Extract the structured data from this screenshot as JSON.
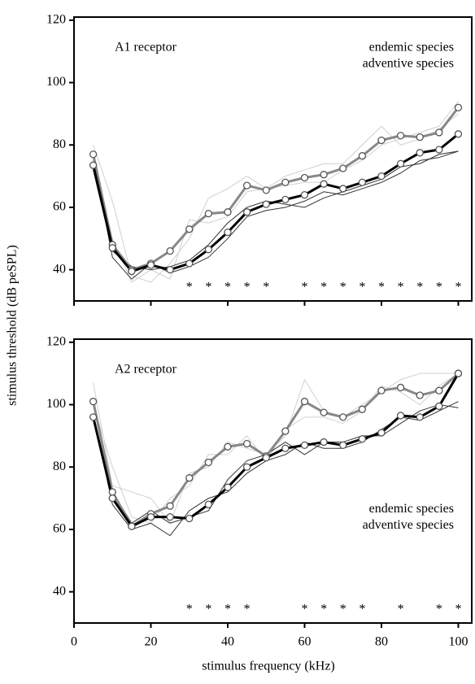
{
  "chart_data": [
    {
      "type": "line",
      "annotation": "A1 receptor",
      "ylabel": "stimulus threshold (dB peSPL)",
      "x": [
        5,
        10,
        15,
        20,
        25,
        30,
        35,
        40,
        45,
        50,
        55,
        60,
        65,
        70,
        75,
        80,
        85,
        90,
        95,
        100
      ],
      "series": [
        {
          "color": "#d0d0d0",
          "linewidth": 1,
          "values": [
            80,
            62,
            38,
            36,
            42,
            50,
            63,
            66,
            70,
            66,
            70,
            72,
            74,
            74,
            80,
            86,
            80,
            82,
            85,
            90
          ]
        },
        {
          "color": "#d0d0d0",
          "linewidth": 1,
          "values": [
            75,
            50,
            36,
            40,
            37,
            56,
            55,
            57,
            65,
            66,
            67,
            68,
            68,
            72,
            75,
            80,
            82,
            84,
            86,
            94
          ]
        },
        {
          "color": "#333333",
          "linewidth": 1,
          "values": [
            76,
            44,
            37,
            42,
            39,
            41,
            44,
            50,
            57,
            59,
            60,
            62,
            65,
            64,
            66,
            68,
            71,
            75,
            76,
            78
          ]
        },
        {
          "color": "#333333",
          "linewidth": 1,
          "values": [
            72,
            46,
            41,
            40,
            41,
            43,
            48,
            55,
            60,
            62,
            61,
            60,
            63,
            65,
            67,
            69,
            73,
            74,
            77,
            78
          ]
        },
        {
          "name": "endemic species",
          "color": "#888888",
          "linewidth": 3,
          "marker": "circle",
          "values": [
            77,
            48,
            40,
            42,
            46,
            53,
            58,
            58.5,
            67,
            65.5,
            68,
            69.5,
            70.5,
            72.5,
            76.5,
            81.5,
            83,
            82.5,
            84,
            92
          ]
        },
        {
          "name": "adventive species",
          "color": "#000000",
          "linewidth": 3,
          "marker": "circle",
          "values": [
            73.5,
            47,
            39.5,
            41.5,
            40,
            42,
            46.5,
            52,
            58.5,
            61,
            62.5,
            64,
            67.5,
            66,
            68,
            70,
            74,
            77.5,
            78.5,
            83.5
          ]
        }
      ],
      "xlim": [
        0,
        103.5
      ],
      "ylim": [
        30,
        121
      ],
      "yticks": [
        40,
        60,
        80,
        100,
        120
      ],
      "legend": "upper right",
      "marker_text": "*",
      "significant_x": [
        30,
        35,
        40,
        45,
        50,
        60,
        65,
        70,
        75,
        80,
        85,
        90,
        95,
        100
      ]
    },
    {
      "type": "line",
      "annotation": "A2 receptor",
      "xlabel": "stimulus frequency (kHz)",
      "x": [
        5,
        10,
        15,
        20,
        25,
        30,
        35,
        40,
        45,
        50,
        55,
        60,
        65,
        70,
        75,
        80,
        85,
        90,
        95,
        100
      ],
      "series": [
        {
          "color": "#d0d0d0",
          "linewidth": 1,
          "values": [
            107,
            74,
            72,
            70,
            62,
            78,
            80,
            88,
            86,
            84,
            90,
            108,
            98,
            96,
            100,
            104,
            108,
            110,
            110,
            110
          ]
        },
        {
          "color": "#d0d0d0",
          "linewidth": 1,
          "values": [
            100,
            80,
            64,
            62,
            70,
            74,
            84,
            84,
            90,
            82,
            92,
            96,
            96,
            94,
            98,
            106,
            104,
            100,
            106,
            110
          ]
        },
        {
          "color": "#333333",
          "linewidth": 1,
          "values": [
            97,
            68,
            60,
            62,
            58,
            66,
            70,
            72,
            78,
            82,
            84,
            88,
            86,
            86,
            88,
            92,
            96,
            95,
            98,
            101
          ]
        },
        {
          "color": "#333333",
          "linewidth": 1,
          "values": [
            95,
            72,
            62,
            66,
            62,
            64,
            66,
            76,
            82,
            84,
            88,
            84,
            88,
            88,
            90,
            90,
            94,
            98,
            100,
            99
          ]
        },
        {
          "name": "endemic species",
          "color": "#888888",
          "linewidth": 3,
          "marker": "circle",
          "values": [
            101,
            72,
            61,
            65,
            67.5,
            76.5,
            81.5,
            86.5,
            87.5,
            83.5,
            91.5,
            101,
            97.5,
            96,
            98.5,
            104.5,
            105.5,
            103,
            104.5,
            110
          ]
        },
        {
          "name": "adventive species",
          "color": "#000000",
          "linewidth": 3,
          "marker": "circle",
          "values": [
            96,
            70,
            61,
            64,
            64,
            63.5,
            68,
            73.5,
            80,
            83,
            86,
            87,
            88,
            87,
            89,
            91,
            96.5,
            96,
            99.5,
            110
          ]
        }
      ],
      "xlim": [
        0,
        103.5
      ],
      "ylim": [
        30,
        121
      ],
      "yticks": [
        40,
        60,
        80,
        100,
        120
      ],
      "xticks": [
        0,
        20,
        40,
        60,
        80,
        100
      ],
      "legend": "center right",
      "marker_text": "*",
      "significant_x": [
        30,
        35,
        40,
        45,
        60,
        65,
        70,
        75,
        85,
        95,
        100
      ]
    }
  ]
}
